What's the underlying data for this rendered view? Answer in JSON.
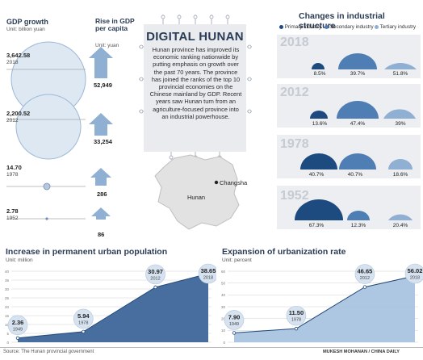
{
  "title": "DIGITAL HUNAN",
  "paragraph": "Hunan province has improved its economic ranking nationwide by putting emphasis on growth over the past 70 years. The province has joined the ranks of the top 10 provincial economies on the Chinese mainland by GDP. Recent years saw Hunan turn from an agriculture-focused province into an industrial powerhouse.",
  "map": {
    "province_label": "Hunan",
    "city_label": "Changsha"
  },
  "gdp": {
    "title": "GDP growth",
    "unit": "Unit: billion yuan",
    "capita_title": "Rise in GDP per capita",
    "capita_unit": "Unit: yuan",
    "rows": [
      {
        "year": "2018",
        "gdp": "3,642.58",
        "per_capita": "52,949"
      },
      {
        "year": "2012",
        "gdp": "2,200.52",
        "per_capita": "33,254"
      },
      {
        "year": "1978",
        "gdp": "14.70",
        "per_capita": "286"
      },
      {
        "year": "1952",
        "gdp": "2.78",
        "per_capita": "86"
      }
    ]
  },
  "industry": {
    "title": "Changes in industrial structure",
    "legend": [
      "Primary industry",
      "Secondary industry",
      "Tertiary industry"
    ],
    "colors": [
      "#1d4a7f",
      "#4f7eb5",
      "#8fafd3"
    ],
    "rows": [
      {
        "year": "2018",
        "values": [
          "8.5%",
          "39.7%",
          "51.8%"
        ]
      },
      {
        "year": "2012",
        "values": [
          "13.6%",
          "47.4%",
          "39%"
        ]
      },
      {
        "year": "1978",
        "values": [
          "40.7%",
          "40.7%",
          "18.6%"
        ]
      },
      {
        "year": "1952",
        "values": [
          "67.3%",
          "12.3%",
          "20.4%"
        ]
      }
    ]
  },
  "footer": {
    "source": "Source: The Hunan provincial government",
    "credit": "MUKESH MOHANAN / CHINA DAILY"
  },
  "chart_data": [
    {
      "type": "area",
      "title": "Increase in permanent urban population",
      "unit": "Unit: million",
      "x": [
        "1949",
        "1978",
        "2012",
        "2018"
      ],
      "values": [
        2.36,
        5.94,
        30.97,
        38.65
      ],
      "labels": [
        "2.36",
        "5.94",
        "30.97",
        "38.65"
      ],
      "ylim": [
        0,
        40
      ],
      "yticks": [
        "0",
        "5",
        "10",
        "15",
        "20",
        "25",
        "30",
        "35",
        "40"
      ],
      "grid": true,
      "color": "#3d6699"
    },
    {
      "type": "area",
      "title": "Expansion of urbanization rate",
      "unit": "Unit: percent",
      "x": [
        "1949",
        "1978",
        "2012",
        "2018"
      ],
      "values": [
        7.9,
        11.5,
        46.65,
        56.02
      ],
      "labels": [
        "7.90",
        "11.50",
        "46.65",
        "56.02"
      ],
      "ylim": [
        0,
        60
      ],
      "yticks": [
        "0",
        "10",
        "20",
        "30",
        "40",
        "50",
        "60"
      ],
      "grid": true,
      "color": "#a9c3df"
    }
  ]
}
